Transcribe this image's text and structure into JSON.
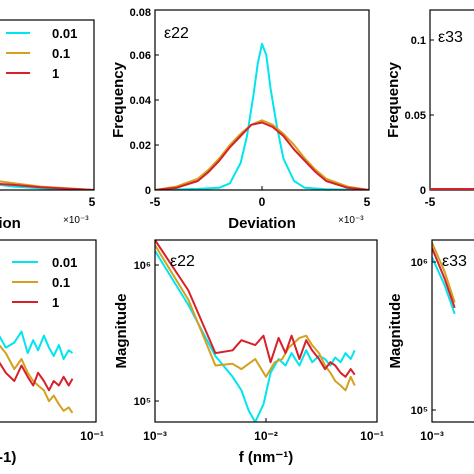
{
  "chart_data": [
    {
      "type": "line",
      "panel": "top-left (cropped)",
      "xlabel": "Deviation",
      "x_multiplier": "×10⁻³",
      "xlim_visible": [
        -0.5,
        5
      ],
      "x_tick_labels": [
        "5"
      ],
      "legend": {
        "placement": "top-right",
        "entries": [
          "0.01",
          "0.1",
          "1"
        ]
      },
      "series": [
        {
          "name": "0.01",
          "color": "#00e5ee",
          "x": [
            -0.5,
            0.0,
            0.5,
            1.0,
            1.5,
            2.0,
            2.5,
            3.0,
            3.5,
            4.0,
            5.0
          ],
          "y": [
            0.3,
            0.42,
            0.32,
            0.18,
            0.1,
            0.05,
            0.03,
            0.02,
            0.01,
            0.005,
            0.0
          ]
        },
        {
          "name": "0.1",
          "color": "#d4a020",
          "x": [
            -0.5,
            0.0,
            0.5,
            1.0,
            1.5,
            2.0,
            2.5,
            3.0,
            3.5,
            4.0,
            5.0
          ],
          "y": [
            0.3,
            0.34,
            0.3,
            0.22,
            0.13,
            0.08,
            0.05,
            0.03,
            0.02,
            0.01,
            0.0
          ]
        },
        {
          "name": "1",
          "color": "#d8202a",
          "x": [
            -0.5,
            0.0,
            0.5,
            1.0,
            1.5,
            2.0,
            2.5,
            3.0,
            3.5,
            4.0,
            5.0
          ],
          "y": [
            0.32,
            0.36,
            0.31,
            0.2,
            0.12,
            0.07,
            0.04,
            0.02,
            0.015,
            0.008,
            0.0
          ]
        }
      ]
    },
    {
      "type": "line",
      "panel": "top-middle",
      "annotation": "ε22",
      "xlabel": "Deviation",
      "ylabel": "Frequency",
      "x_multiplier": "×10⁻³",
      "xlim": [
        -5,
        5
      ],
      "ylim": [
        0,
        0.08
      ],
      "x_tick_labels": [
        "-5",
        "0",
        "5"
      ],
      "y_tick_labels": [
        "0",
        "0.02",
        "0.04",
        "0.06",
        "0.08"
      ],
      "series": [
        {
          "name": "0.01",
          "color": "#00e5ee",
          "x": [
            -5,
            -3,
            -2,
            -1.5,
            -1,
            -0.7,
            -0.4,
            -0.2,
            0,
            0.2,
            0.4,
            0.7,
            1,
            1.5,
            2,
            3,
            5
          ],
          "y": [
            0,
            0.0005,
            0.001,
            0.003,
            0.012,
            0.024,
            0.042,
            0.056,
            0.065,
            0.06,
            0.045,
            0.028,
            0.014,
            0.004,
            0.001,
            0.0003,
            0
          ]
        },
        {
          "name": "0.1",
          "color": "#d4a020",
          "x": [
            -5,
            -4,
            -3,
            -2.5,
            -2,
            -1.5,
            -1,
            -0.5,
            0,
            0.5,
            1,
            1.5,
            2,
            2.5,
            3,
            4,
            5
          ],
          "y": [
            0,
            0.0015,
            0.005,
            0.009,
            0.014,
            0.02,
            0.025,
            0.029,
            0.031,
            0.029,
            0.025,
            0.02,
            0.014,
            0.009,
            0.005,
            0.0015,
            0
          ]
        },
        {
          "name": "1",
          "color": "#d8202a",
          "x": [
            -5,
            -4,
            -3,
            -2.5,
            -2,
            -1.5,
            -1,
            -0.5,
            0,
            0.5,
            1,
            1.5,
            2,
            2.5,
            3,
            4,
            5
          ],
          "y": [
            0,
            0.001,
            0.004,
            0.008,
            0.013,
            0.019,
            0.024,
            0.029,
            0.03,
            0.028,
            0.024,
            0.018,
            0.013,
            0.008,
            0.004,
            0.001,
            0
          ]
        }
      ]
    },
    {
      "type": "line",
      "panel": "top-right (cropped)",
      "annotation": "ε33",
      "ylabel": "Frequency",
      "ylim": [
        0,
        0.12
      ],
      "x_tick_labels": [
        "-5"
      ],
      "y_tick_labels": [
        "0",
        "0.05",
        "0.1"
      ],
      "series": []
    },
    {
      "type": "line",
      "panel": "bottom-left (cropped)",
      "x_scale": "log",
      "y_scale": "log",
      "xlabel_fragment": "-1)",
      "x_tick_labels": [
        "10⁻¹"
      ],
      "legend": {
        "placement": "top-right",
        "entries": [
          "0.01",
          "0.1",
          "1"
        ]
      },
      "series": [
        {
          "name": "0.01",
          "color": "#00e5ee",
          "x": [
            0.013,
            0.015,
            0.018,
            0.021,
            0.024,
            0.027,
            0.03,
            0.034,
            0.038,
            0.042,
            0.047,
            0.052,
            0.058,
            0.063
          ],
          "y": [
            300000,
            250000,
            270000,
            320000,
            230000,
            280000,
            240000,
            300000,
            250000,
            220000,
            260000,
            210000,
            240000,
            230000
          ]
        },
        {
          "name": "0.1",
          "color": "#d4a020",
          "x": [
            0.013,
            0.015,
            0.018,
            0.021,
            0.024,
            0.027,
            0.03,
            0.034,
            0.038,
            0.042,
            0.047,
            0.052,
            0.058,
            0.063
          ],
          "y": [
            260000,
            230000,
            180000,
            210000,
            170000,
            150000,
            140000,
            130000,
            110000,
            120000,
            105000,
            95000,
            100000,
            92000
          ]
        },
        {
          "name": "1",
          "color": "#d8202a",
          "x": [
            0.013,
            0.015,
            0.018,
            0.021,
            0.024,
            0.027,
            0.03,
            0.034,
            0.038,
            0.042,
            0.047,
            0.052,
            0.058,
            0.063
          ],
          "y": [
            200000,
            170000,
            150000,
            190000,
            160000,
            140000,
            170000,
            150000,
            130000,
            150000,
            140000,
            160000,
            140000,
            155000
          ]
        }
      ]
    },
    {
      "type": "line",
      "panel": "bottom-middle",
      "annotation": "ε22",
      "xlabel": "f (nm⁻¹)",
      "ylabel": "Magnitude",
      "x_scale": "log",
      "y_scale": "log",
      "xlim": [
        0.001,
        0.1
      ],
      "ylim": [
        80000,
        1300000
      ],
      "x_tick_labels": [
        "10⁻³",
        "10⁻²",
        "10⁻¹"
      ],
      "y_tick_labels": [
        "10⁵",
        "10⁶"
      ],
      "series": [
        {
          "name": "0.01",
          "color": "#00e5ee",
          "x": [
            0.001,
            0.002,
            0.0035,
            0.005,
            0.006,
            0.007,
            0.008,
            0.0095,
            0.011,
            0.013,
            0.015,
            0.017,
            0.02,
            0.023,
            0.026,
            0.03,
            0.034,
            0.038,
            0.042,
            0.047,
            0.052,
            0.058,
            0.063
          ],
          "y": [
            1100000,
            480000,
            220000,
            160000,
            130000,
            95000,
            80000,
            105000,
            170000,
            210000,
            190000,
            230000,
            190000,
            240000,
            200000,
            220000,
            210000,
            190000,
            215000,
            200000,
            230000,
            210000,
            240000
          ]
        },
        {
          "name": "0.1",
          "color": "#d4a020",
          "x": [
            0.001,
            0.002,
            0.0035,
            0.005,
            0.006,
            0.008,
            0.01,
            0.012,
            0.014,
            0.016,
            0.018,
            0.02,
            0.023,
            0.026,
            0.03,
            0.034,
            0.038,
            0.042,
            0.047,
            0.052,
            0.058,
            0.063
          ],
          "y": [
            1200000,
            520000,
            190000,
            195000,
            180000,
            210000,
            160000,
            200000,
            210000,
            250000,
            270000,
            290000,
            300000,
            260000,
            230000,
            190000,
            170000,
            150000,
            140000,
            130000,
            160000,
            140000
          ]
        },
        {
          "name": "1",
          "color": "#d8202a",
          "x": [
            0.001,
            0.002,
            0.0035,
            0.005,
            0.006,
            0.008,
            0.0095,
            0.011,
            0.013,
            0.015,
            0.017,
            0.02,
            0.023,
            0.026,
            0.03,
            0.034,
            0.038,
            0.042,
            0.047,
            0.052,
            0.058,
            0.063
          ],
          "y": [
            1300000,
            600000,
            230000,
            240000,
            280000,
            260000,
            300000,
            200000,
            290000,
            230000,
            300000,
            210000,
            280000,
            240000,
            210000,
            180000,
            200000,
            190000,
            170000,
            160000,
            180000,
            165000
          ]
        }
      ]
    },
    {
      "type": "line",
      "panel": "bottom-right (cropped)",
      "annotation": "ε33",
      "ylabel": "Magnitude",
      "x_scale": "log",
      "y_scale": "log",
      "x_tick_labels": [
        "10⁻³"
      ],
      "y_tick_labels": [
        "10⁵",
        "10⁶"
      ],
      "series": [
        {
          "name": "0.01",
          "color": "#00e5ee",
          "x": [
            0.001,
            0.0013,
            0.0016
          ],
          "y": [
            1000000,
            650000,
            420000
          ]
        },
        {
          "name": "0.1",
          "color": "#d4a020",
          "x": [
            0.001,
            0.0013,
            0.0016
          ],
          "y": [
            1250000,
            800000,
            500000
          ]
        },
        {
          "name": "1",
          "color": "#d8202a",
          "x": [
            0.001,
            0.0013,
            0.0016
          ],
          "y": [
            1150000,
            720000,
            460000
          ]
        }
      ]
    }
  ]
}
